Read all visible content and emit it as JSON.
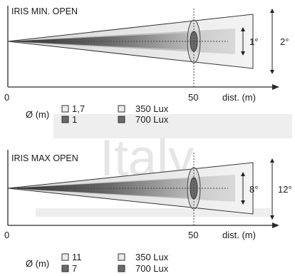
{
  "watermark": "Italy",
  "colors": {
    "outer_beam": "#e7e7e7",
    "inner_beam": "#6f6f6f",
    "axis": "#2a2a2a",
    "watermark": "#e3e3e3"
  },
  "panels": [
    {
      "title": "IRIS MIN. OPEN",
      "axis_origin": "0",
      "axis_mark": "50",
      "axis_label": "dist. (m)",
      "inner_angle": "1°",
      "outer_angle": "2°",
      "legend": {
        "diameter_label": "Ø (m)",
        "outer_diameter": "1,7",
        "inner_diameter": "1",
        "outer_lux": "350 Lux",
        "inner_lux": "700 Lux"
      }
    },
    {
      "title": "IRIS MAX OPEN",
      "axis_origin": "0",
      "axis_mark": "50",
      "axis_label": "dist. (m)",
      "inner_angle": "8°",
      "outer_angle": "12°",
      "legend": {
        "diameter_label": "Ø (m)",
        "outer_diameter": "11",
        "inner_diameter": "7",
        "outer_lux": "350 Lux",
        "inner_lux": "700 Lux"
      }
    }
  ]
}
